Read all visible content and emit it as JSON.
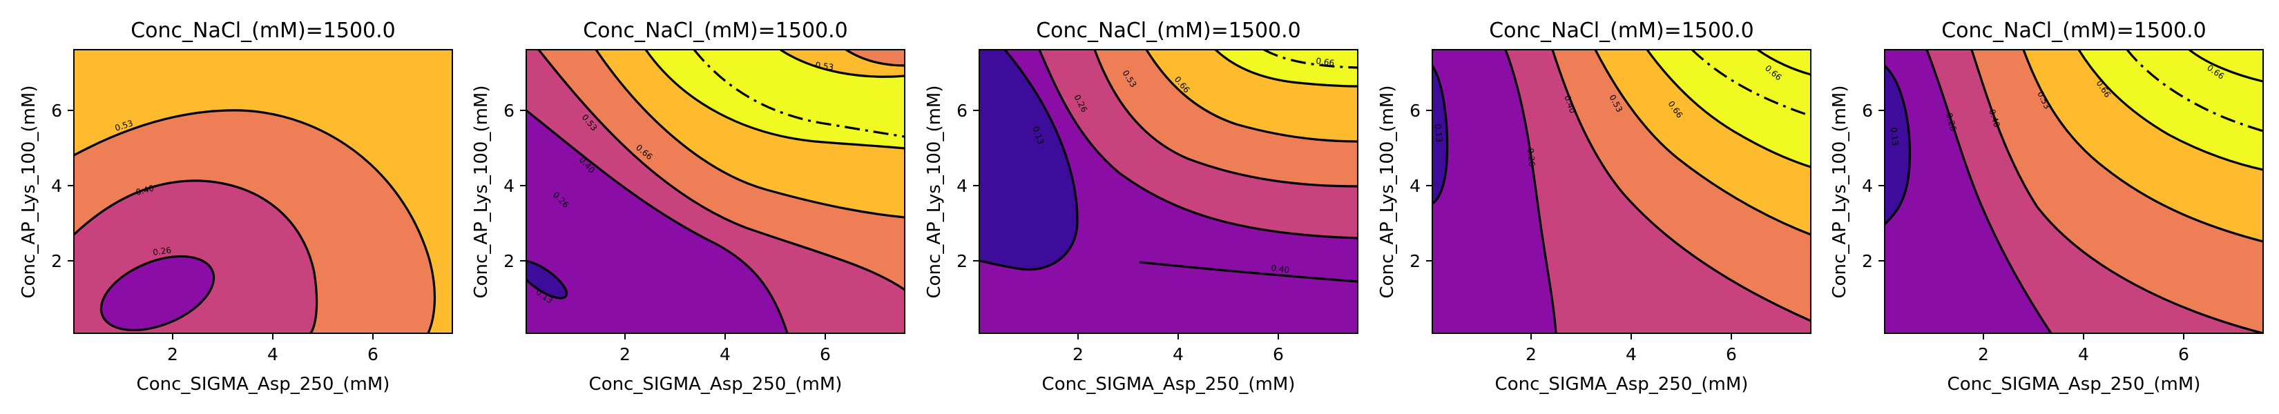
{
  "chart_data": {
    "type": "contour",
    "colors": {
      "level_0_13": "#3e0c9a",
      "level_13_26": "#8a0da5",
      "level_26_40": "#c8437e",
      "level_40_53": "#ee7e56",
      "level_53_66": "#fdbb2d",
      "level_66_up": "#f0f921",
      "contour_line": "#000000"
    },
    "panels": [
      {
        "title": "Conc_NaCl_(mM)=1500.0",
        "xlabel": "Conc_SIGMA_Asp_250_(mM)",
        "ylabel": "Conc_AP_Lys_100_(mM)",
        "xlim": [
          0.1,
          7.6
        ],
        "ylim": [
          0.1,
          7.6
        ],
        "xticks": [
          "2",
          "4",
          "6"
        ],
        "yticks": [
          "2",
          "4",
          "6"
        ],
        "contour_labels": [
          "0.26",
          "0.40",
          "0.53"
        ]
      },
      {
        "title": "Conc_NaCl_(mM)=1500.0",
        "xlabel": "Conc_SIGMA_Asp_250_(mM)",
        "ylabel": "Conc_AP_Lys_100_(mM)",
        "xlim": [
          0.1,
          7.6
        ],
        "ylim": [
          0.1,
          7.6
        ],
        "xticks": [
          "2",
          "4",
          "6"
        ],
        "yticks": [
          "2",
          "4",
          "6"
        ],
        "contour_labels": [
          "0.13",
          "0.26",
          "0.40",
          "0.53",
          "0.66",
          "0.53"
        ]
      },
      {
        "title": "Conc_NaCl_(mM)=1500.0",
        "xlabel": "Conc_SIGMA_Asp_250_(mM)",
        "ylabel": "Conc_AP_Lys_100_(mM)",
        "xlim": [
          0.1,
          7.6
        ],
        "ylim": [
          0.1,
          7.6
        ],
        "xticks": [
          "2",
          "4",
          "6"
        ],
        "yticks": [
          "2",
          "4",
          "6"
        ],
        "contour_labels": [
          "0.13",
          "0.26",
          "0.40",
          "0.53",
          "0.66",
          "0.66",
          "0.40"
        ]
      },
      {
        "title": "Conc_NaCl_(mM)=1500.0",
        "xlabel": "Conc_SIGMA_Asp_250_(mM)",
        "ylabel": "Conc_AP_Lys_100_(mM)",
        "xlim": [
          0.1,
          7.6
        ],
        "ylim": [
          0.1,
          7.6
        ],
        "xticks": [
          "2",
          "4",
          "6"
        ],
        "yticks": [
          "2",
          "4",
          "6"
        ],
        "contour_labels": [
          "0.13",
          "0.26",
          "0.40",
          "0.53",
          "0.66",
          "0.66"
        ]
      },
      {
        "title": "Conc_NaCl_(mM)=1500.0",
        "xlabel": "Conc_SIGMA_Asp_250_(mM)",
        "ylabel": "Conc_AP_Lys_100_(mM)",
        "xlim": [
          0.1,
          7.6
        ],
        "ylim": [
          0.1,
          7.6
        ],
        "xticks": [
          "2",
          "4",
          "6"
        ],
        "yticks": [
          "2",
          "4",
          "6"
        ],
        "contour_labels": [
          "0.13",
          "0.26",
          "0.40",
          "0.53",
          "0.66",
          "0.66"
        ]
      }
    ]
  }
}
